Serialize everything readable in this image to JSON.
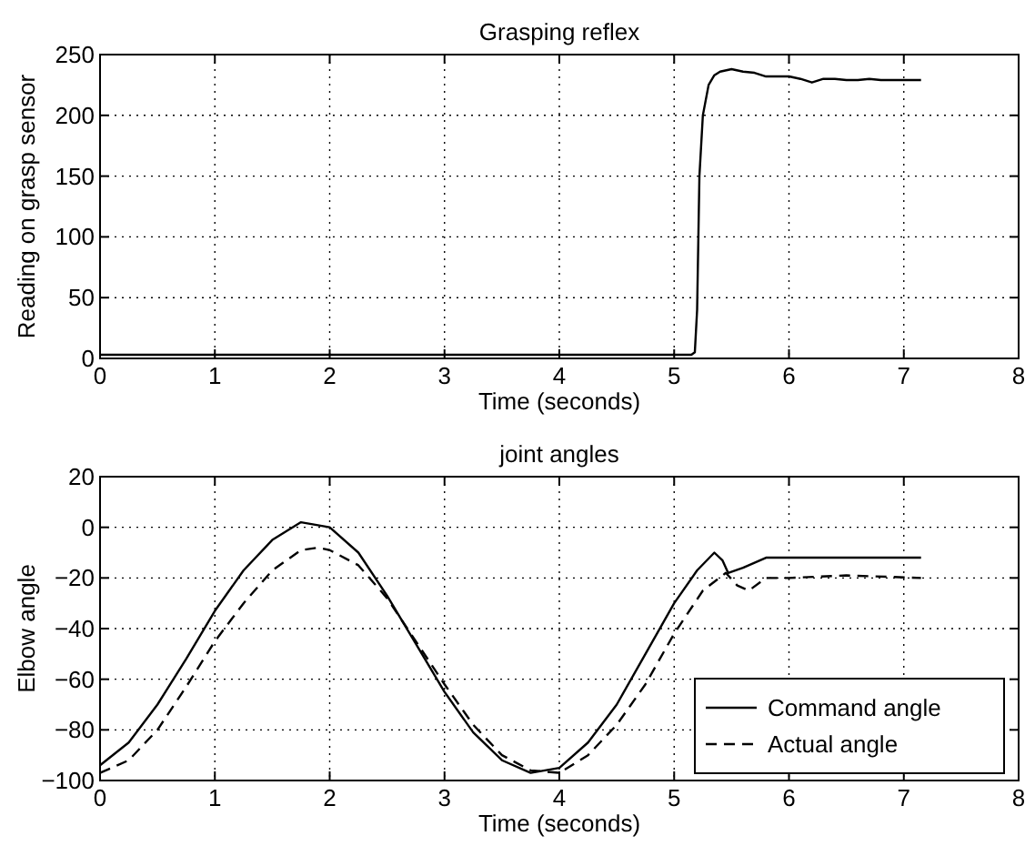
{
  "chart_data": [
    {
      "type": "line",
      "title": "Grasping reflex",
      "xlabel": "Time (seconds)",
      "ylabel": "Reading on grasp sensor",
      "xlim": [
        0,
        8
      ],
      "ylim": [
        0,
        250
      ],
      "xticks": [
        0,
        1,
        2,
        3,
        4,
        5,
        6,
        7,
        8
      ],
      "yticks": [
        0,
        50,
        100,
        150,
        200,
        250
      ],
      "grid": true,
      "legend": false,
      "series": [
        {
          "color": "#000000",
          "x": [
            0,
            1,
            2,
            3,
            4,
            5,
            5.15,
            5.18,
            5.2,
            5.22,
            5.25,
            5.3,
            5.35,
            5.4,
            5.5,
            5.6,
            5.7,
            5.8,
            5.9,
            6.0,
            6.1,
            6.2,
            6.3,
            6.4,
            6.5,
            6.6,
            6.7,
            6.8,
            7.0,
            7.15
          ],
          "values": [
            3,
            3,
            3,
            3,
            3,
            3,
            3,
            5,
            40,
            150,
            200,
            225,
            233,
            236,
            238,
            236,
            235,
            232,
            232,
            232,
            230,
            227,
            230,
            230,
            229,
            229,
            230,
            229,
            229,
            229
          ]
        }
      ]
    },
    {
      "type": "line",
      "title": "joint angles",
      "xlabel": "Time (seconds)",
      "ylabel": "Elbow angle",
      "xlim": [
        0,
        8
      ],
      "ylim": [
        -100,
        20
      ],
      "xticks": [
        0,
        1,
        2,
        3,
        4,
        5,
        6,
        7,
        8
      ],
      "yticks": [
        -100,
        -80,
        -60,
        -40,
        -20,
        0,
        20
      ],
      "grid": true,
      "legend": "bottom right",
      "series": [
        {
          "name": "Command angle",
          "color": "#000000",
          "line_style": "solid",
          "x": [
            0,
            0.25,
            0.5,
            0.75,
            1.0,
            1.25,
            1.5,
            1.75,
            2.0,
            2.25,
            2.5,
            2.75,
            3.0,
            3.25,
            3.5,
            3.75,
            4.0,
            4.25,
            4.5,
            4.75,
            5.0,
            5.2,
            5.35,
            5.42,
            5.47,
            5.6,
            5.8,
            6.0,
            7.15
          ],
          "values": [
            -94,
            -85,
            -70,
            -52,
            -33,
            -17,
            -5,
            2,
            0,
            -10,
            -27,
            -46,
            -65,
            -81,
            -92,
            -97,
            -95,
            -85,
            -70,
            -50,
            -30,
            -17,
            -10,
            -13,
            -18,
            -16,
            -12,
            -12,
            -12
          ]
        },
        {
          "name": "Actual angle",
          "color": "#000000",
          "line_style": "dashed",
          "x": [
            0,
            0.25,
            0.5,
            0.75,
            1.0,
            1.25,
            1.5,
            1.75,
            1.9,
            2.0,
            2.25,
            2.5,
            2.75,
            3.0,
            3.25,
            3.5,
            3.75,
            4.0,
            4.25,
            4.5,
            4.75,
            5.0,
            5.25,
            5.45,
            5.55,
            5.65,
            5.8,
            6.0,
            6.5,
            7.15
          ],
          "values": [
            -97,
            -92,
            -80,
            -63,
            -45,
            -30,
            -17,
            -9,
            -8,
            -9,
            -15,
            -28,
            -45,
            -62,
            -78,
            -90,
            -96,
            -97,
            -90,
            -78,
            -62,
            -42,
            -25,
            -18,
            -23,
            -25,
            -20,
            -20,
            -19,
            -20
          ]
        }
      ]
    }
  ]
}
